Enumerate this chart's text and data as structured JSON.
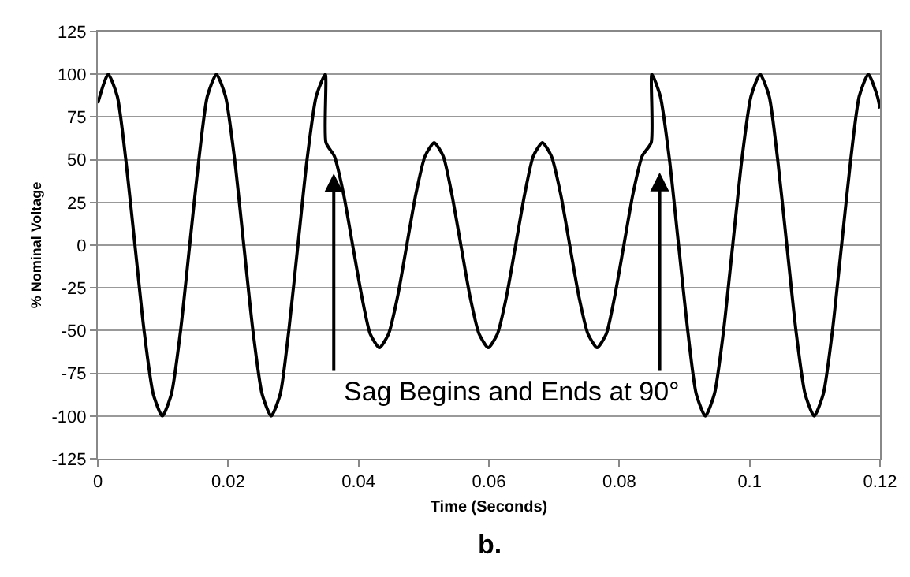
{
  "chart_data": {
    "type": "line",
    "xlabel": "Time (Seconds)",
    "ylabel": "% Nominal Voltage",
    "x": [
      0,
      0.0016,
      0.003,
      0.0043,
      0.0057,
      0.0071,
      0.0085,
      0.0099,
      0.0113,
      0.0127,
      0.0141,
      0.0155,
      0.0168,
      0.0182,
      0.0196,
      0.021,
      0.0224,
      0.0238,
      0.0252,
      0.0266,
      0.028,
      0.0293,
      0.0307,
      0.0321,
      0.0335,
      0.0349,
      0.035,
      0.0363,
      0.0377,
      0.0391,
      0.0405,
      0.0418,
      0.0432,
      0.0446,
      0.046,
      0.0474,
      0.0488,
      0.0502,
      0.0516,
      0.053,
      0.0543,
      0.0557,
      0.0571,
      0.0585,
      0.0599,
      0.0613,
      0.0627,
      0.0641,
      0.0655,
      0.0668,
      0.0682,
      0.0696,
      0.071,
      0.0724,
      0.0738,
      0.0752,
      0.0766,
      0.078,
      0.0793,
      0.0807,
      0.0821,
      0.0835,
      0.0849,
      0.085,
      0.0863,
      0.0877,
      0.0891,
      0.0905,
      0.0918,
      0.0932,
      0.0946,
      0.096,
      0.0974,
      0.0988,
      0.1002,
      0.1016,
      0.103,
      0.1043,
      0.1057,
      0.1071,
      0.1085,
      0.1099,
      0.1113,
      0.1127,
      0.1141,
      0.1155,
      0.1168,
      0.1182,
      0.1196,
      0.12
    ],
    "series": [
      {
        "color": "#000000",
        "values": [
          83,
          100,
          87,
          50,
          0,
          -50,
          -87,
          -100,
          -87,
          -50,
          0,
          50,
          87,
          100,
          87,
          50,
          0,
          -50,
          -87,
          -100,
          -87,
          -50,
          0,
          50,
          87,
          100,
          60,
          52,
          30,
          0,
          -30,
          -52,
          -60,
          -52,
          -30,
          0,
          30,
          52,
          60,
          52,
          30,
          0,
          -30,
          -52,
          -60,
          -52,
          -30,
          0,
          30,
          52,
          60,
          52,
          30,
          0,
          -30,
          -52,
          -60,
          -52,
          -30,
          0,
          30,
          52,
          60,
          100,
          87,
          50,
          0,
          -50,
          -87,
          -100,
          -87,
          -50,
          0,
          50,
          87,
          100,
          87,
          50,
          0,
          -50,
          -87,
          -100,
          -87,
          -50,
          0,
          50,
          87,
          100,
          87,
          80
        ]
      }
    ],
    "xlim": [
      0,
      0.12
    ],
    "xticks": [
      0,
      0.02,
      0.04,
      0.06,
      0.08,
      0.1,
      0.12
    ],
    "ylim": [
      -125,
      125
    ],
    "yticks": [
      -125,
      -100,
      -75,
      -50,
      -25,
      0,
      25,
      50,
      75,
      100,
      125
    ],
    "grid": "y",
    "annotations": [
      {
        "text": "Sag Begins and Ends at 90°",
        "x": 0.0362,
        "y": 42
      },
      "b."
    ]
  }
}
